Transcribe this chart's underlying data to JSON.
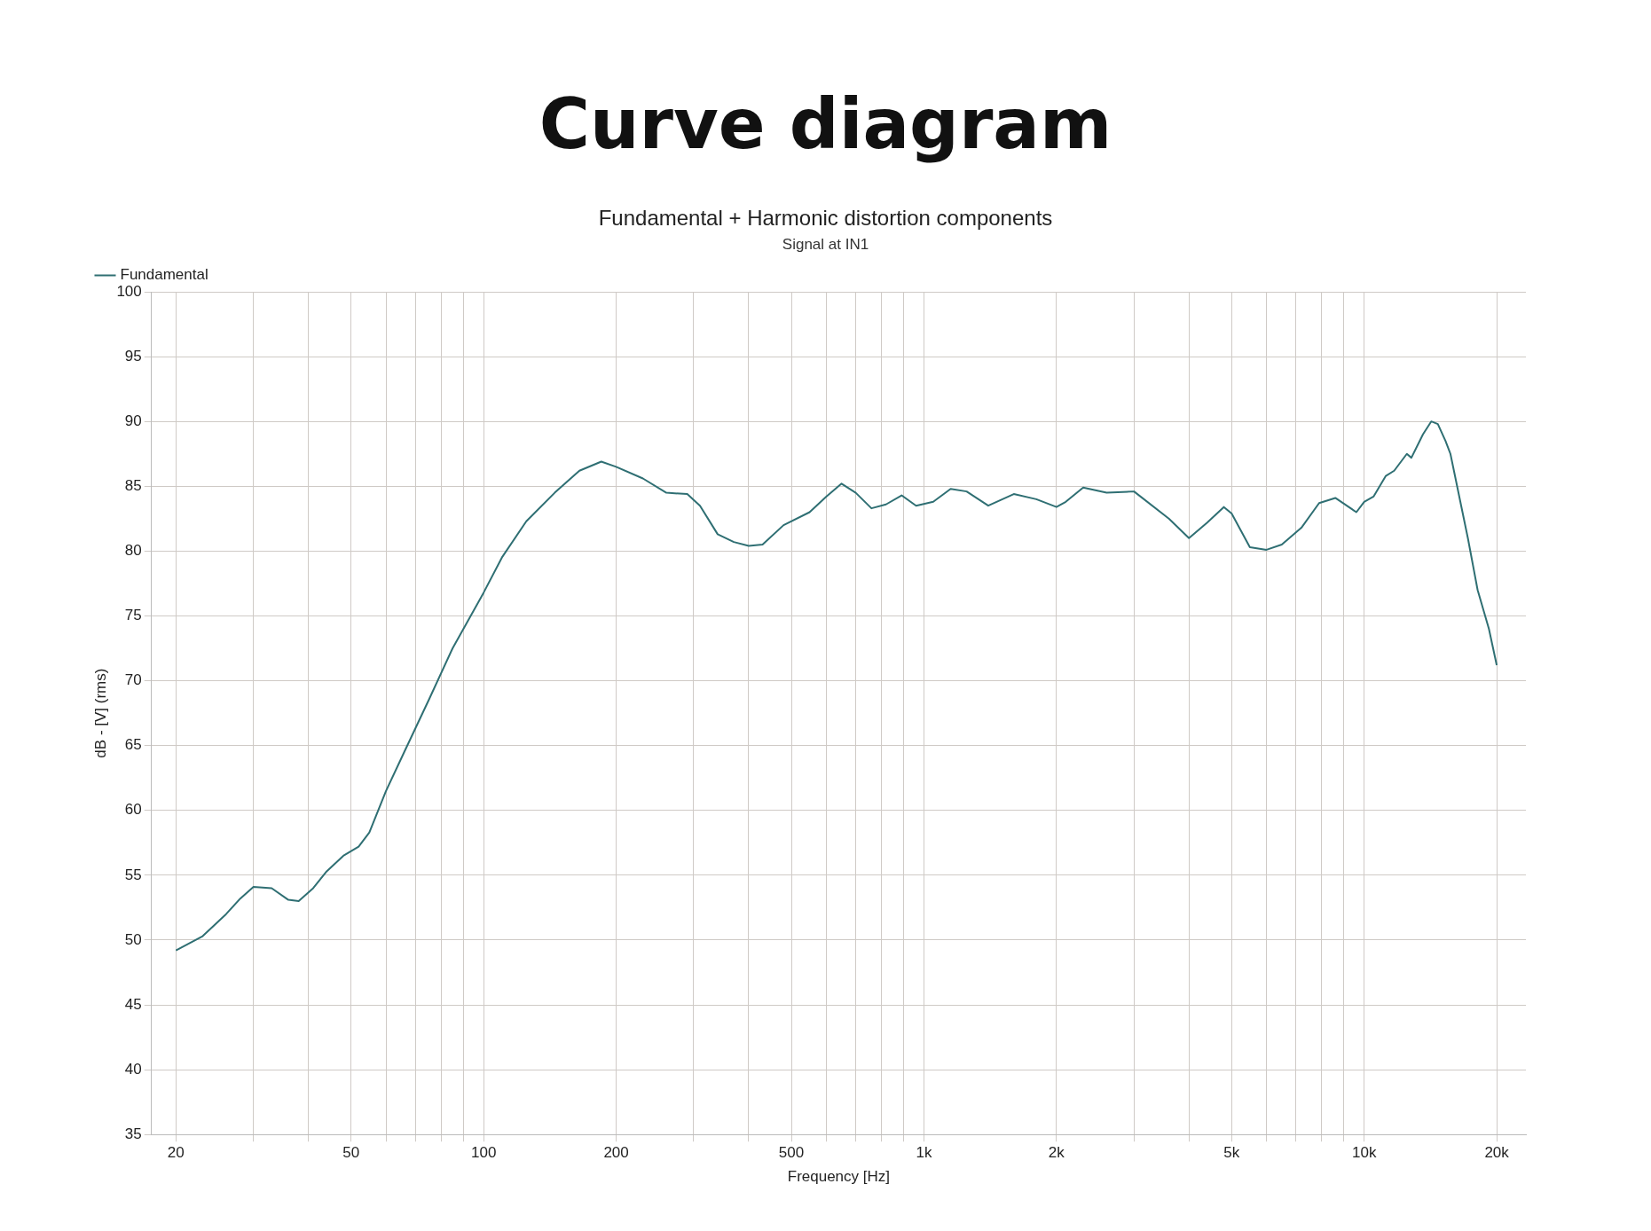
{
  "chart_data": {
    "type": "line",
    "title": "Curve diagram",
    "subtitle": "Fundamental + Harmonic distortion components",
    "annotations": [
      "Signal at IN1"
    ],
    "xlabel": "Frequency [Hz]",
    "ylabel": "dB - [V] (rms)",
    "log": "x",
    "grid": true,
    "legend": "top left",
    "marker": "none",
    "line_style": "solid",
    "xlim": [
      17.6,
      23300
    ],
    "ylim": [
      35,
      100
    ],
    "xticks": [
      {
        "value": 20,
        "label": "20"
      },
      {
        "value": 30,
        "label": null
      },
      {
        "value": 40,
        "label": null
      },
      {
        "value": 50,
        "label": "50"
      },
      {
        "value": 60,
        "label": null
      },
      {
        "value": 70,
        "label": null
      },
      {
        "value": 80,
        "label": null
      },
      {
        "value": 90,
        "label": null
      },
      {
        "value": 100,
        "label": "100"
      },
      {
        "value": 200,
        "label": "200"
      },
      {
        "value": 300,
        "label": null
      },
      {
        "value": 400,
        "label": null
      },
      {
        "value": 500,
        "label": "500"
      },
      {
        "value": 600,
        "label": null
      },
      {
        "value": 700,
        "label": null
      },
      {
        "value": 800,
        "label": null
      },
      {
        "value": 900,
        "label": null
      },
      {
        "value": 1000,
        "label": "1k"
      },
      {
        "value": 2000,
        "label": "2k"
      },
      {
        "value": 3000,
        "label": null
      },
      {
        "value": 4000,
        "label": null
      },
      {
        "value": 5000,
        "label": "5k"
      },
      {
        "value": 6000,
        "label": null
      },
      {
        "value": 7000,
        "label": null
      },
      {
        "value": 8000,
        "label": null
      },
      {
        "value": 9000,
        "label": null
      },
      {
        "value": 10000,
        "label": "10k"
      },
      {
        "value": 20000,
        "label": "20k"
      }
    ],
    "yticks": [
      35,
      40,
      45,
      50,
      55,
      60,
      65,
      70,
      75,
      80,
      85,
      90,
      95,
      100
    ],
    "series": [
      {
        "name": "Fundamental",
        "color": "#2f6f73",
        "x": [
          20,
          23,
          26,
          28,
          30,
          33,
          36,
          38,
          41,
          44,
          48,
          52,
          55,
          60,
          66,
          75,
          85,
          100,
          110,
          125,
          145,
          165,
          185,
          200,
          230,
          260,
          290,
          310,
          340,
          370,
          400,
          430,
          480,
          550,
          600,
          650,
          700,
          760,
          820,
          890,
          960,
          1050,
          1150,
          1250,
          1400,
          1600,
          1800,
          2000,
          2100,
          2300,
          2600,
          3000,
          3600,
          4000,
          4400,
          4800,
          5000,
          5500,
          6000,
          6500,
          7200,
          7900,
          8600,
          9600,
          10000,
          10500,
          11200,
          11700,
          12500,
          12800,
          13600,
          14200,
          14700,
          15300,
          15700,
          17200,
          18100,
          19200,
          20000
        ],
        "values": [
          49.2,
          50.3,
          52.0,
          53.2,
          54.1,
          54.0,
          53.1,
          53.0,
          54.0,
          55.3,
          56.5,
          57.2,
          58.3,
          61.5,
          64.5,
          68.5,
          72.5,
          76.8,
          79.5,
          82.3,
          84.5,
          86.2,
          86.9,
          86.5,
          85.6,
          84.5,
          84.4,
          83.5,
          81.3,
          80.7,
          80.4,
          80.5,
          82.0,
          83.0,
          84.2,
          85.2,
          84.5,
          83.3,
          83.6,
          84.3,
          83.5,
          83.8,
          84.8,
          84.6,
          83.5,
          84.4,
          84.0,
          83.4,
          83.8,
          84.9,
          84.5,
          84.6,
          82.5,
          81.0,
          82.2,
          83.4,
          82.9,
          80.3,
          80.1,
          80.5,
          81.8,
          83.7,
          84.1,
          83.0,
          83.8,
          84.2,
          85.8,
          86.2,
          87.5,
          87.2,
          89.0,
          90.0,
          89.8,
          88.5,
          87.5,
          81.0,
          77.0,
          74.0,
          71.2
        ]
      }
    ]
  }
}
